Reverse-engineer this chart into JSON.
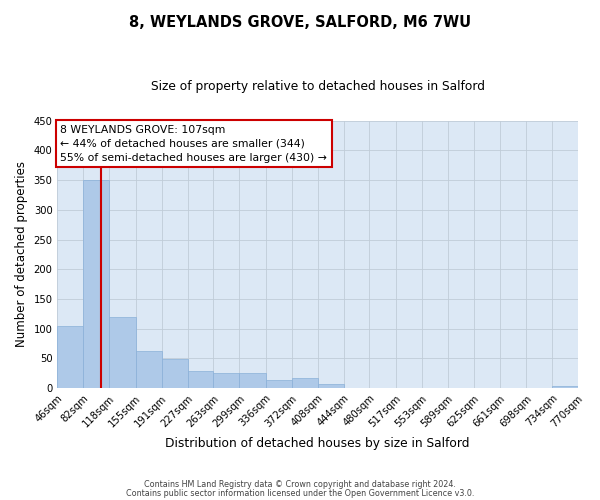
{
  "title": "8, WEYLANDS GROVE, SALFORD, M6 7WU",
  "subtitle": "Size of property relative to detached houses in Salford",
  "xlabel": "Distribution of detached houses by size in Salford",
  "ylabel": "Number of detached properties",
  "bin_labels": [
    "46sqm",
    "82sqm",
    "118sqm",
    "155sqm",
    "191sqm",
    "227sqm",
    "263sqm",
    "299sqm",
    "336sqm",
    "372sqm",
    "408sqm",
    "444sqm",
    "480sqm",
    "517sqm",
    "553sqm",
    "589sqm",
    "625sqm",
    "661sqm",
    "698sqm",
    "734sqm",
    "770sqm"
  ],
  "bar_heights": [
    105,
    350,
    120,
    62,
    49,
    29,
    25,
    25,
    13,
    17,
    7,
    0,
    0,
    0,
    0,
    0,
    0,
    0,
    0,
    3
  ],
  "bar_color": "#aec9e8",
  "bar_edge_color": "#8ab0d8",
  "property_line_x": 107,
  "property_line_color": "#cc0000",
  "ylim": [
    0,
    450
  ],
  "yticks": [
    0,
    50,
    100,
    150,
    200,
    250,
    300,
    350,
    400,
    450
  ],
  "annotation_title": "8 WEYLANDS GROVE: 107sqm",
  "annotation_line1": "← 44% of detached houses are smaller (344)",
  "annotation_line2": "55% of semi-detached houses are larger (430) →",
  "annotation_box_color": "#cc0000",
  "footer_line1": "Contains HM Land Registry data © Crown copyright and database right 2024.",
  "footer_line2": "Contains public sector information licensed under the Open Government Licence v3.0.",
  "background_color": "#ffffff",
  "plot_bg_color": "#dce8f5",
  "grid_color": "#c0ccd8"
}
